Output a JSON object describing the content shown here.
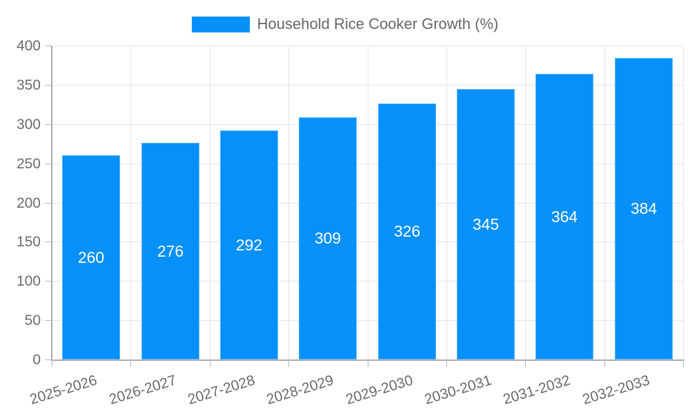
{
  "legend": {
    "label": "Household Rice Cooker Growth (%)",
    "swatch_color": "#0590fa"
  },
  "chart_data": {
    "type": "bar",
    "title": "",
    "xlabel": "",
    "ylabel": "",
    "categories": [
      "2025-2026",
      "2026-2027",
      "2027-2028",
      "2028-2029",
      "2029-2030",
      "2030-2031",
      "2031-2032",
      "2032-2033"
    ],
    "series": [
      {
        "name": "Household Rice Cooker Growth (%)",
        "values": [
          260,
          276,
          292,
          309,
          326,
          345,
          364,
          384
        ],
        "color": "#0590fa"
      }
    ],
    "value_labels_shown": true,
    "value_label_color": "#ffffff",
    "ylim": [
      0,
      400
    ],
    "yticks": [
      0,
      50,
      100,
      150,
      200,
      250,
      300,
      350,
      400
    ],
    "grid": true,
    "legend_position": "top",
    "x_label_rotation_deg": -17
  },
  "colors": {
    "gridline": "#e5e5e5",
    "axis_line": "#a8a8a8",
    "tick_label": "#6b6b6b",
    "legend_text": "#676767"
  }
}
